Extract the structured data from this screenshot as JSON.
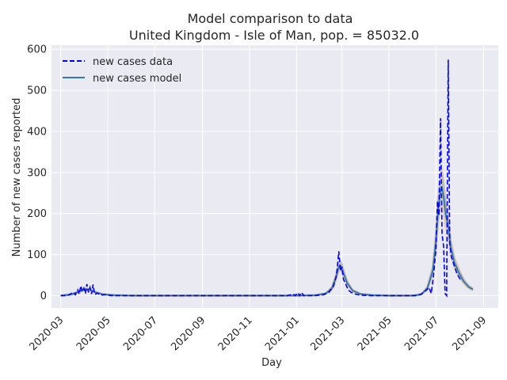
{
  "chart_data": {
    "type": "line",
    "title": "Model comparison to data",
    "subtitle": "United Kingdom - Isle of Man, pop. = 85032.0",
    "xlabel": "Day",
    "ylabel": "Number of new cases reported",
    "x_range": [
      "2020-02-18",
      "2021-09-20"
    ],
    "ylim": [
      -30,
      610
    ],
    "yticks": [
      0,
      100,
      200,
      300,
      400,
      500,
      600
    ],
    "xticks": [
      "2020-03",
      "2020-05",
      "2020-07",
      "2020-09",
      "2020-11",
      "2021-01",
      "2021-03",
      "2021-05",
      "2021-07",
      "2021-09"
    ],
    "grid": true,
    "legend_position": "upper-left",
    "series": [
      {
        "name": "new cases data",
        "style": "dashed",
        "color": "#0000ff",
        "points": [
          [
            "2020-03-01",
            0
          ],
          [
            "2020-03-10",
            0
          ],
          [
            "2020-03-17",
            8
          ],
          [
            "2020-03-20",
            2
          ],
          [
            "2020-03-23",
            14
          ],
          [
            "2020-03-25",
            4
          ],
          [
            "2020-03-27",
            24
          ],
          [
            "2020-03-29",
            10
          ],
          [
            "2020-03-31",
            18
          ],
          [
            "2020-04-02",
            5
          ],
          [
            "2020-04-04",
            28
          ],
          [
            "2020-04-06",
            8
          ],
          [
            "2020-04-08",
            20
          ],
          [
            "2020-04-10",
            4
          ],
          [
            "2020-04-12",
            27
          ],
          [
            "2020-04-14",
            3
          ],
          [
            "2020-04-18",
            6
          ],
          [
            "2020-04-22",
            1
          ],
          [
            "2020-04-28",
            3
          ],
          [
            "2020-05-05",
            0
          ],
          [
            "2020-12-20",
            0
          ],
          [
            "2020-12-28",
            4
          ],
          [
            "2020-12-30",
            0
          ],
          [
            "2021-01-03",
            7
          ],
          [
            "2021-01-05",
            0
          ],
          [
            "2021-01-08",
            8
          ],
          [
            "2021-01-10",
            0
          ],
          [
            "2021-01-25",
            0
          ],
          [
            "2021-02-05",
            2
          ],
          [
            "2021-02-12",
            8
          ],
          [
            "2021-02-18",
            22
          ],
          [
            "2021-02-22",
            50
          ],
          [
            "2021-02-25",
            108
          ],
          [
            "2021-02-27",
            60
          ],
          [
            "2021-03-01",
            70
          ],
          [
            "2021-03-03",
            40
          ],
          [
            "2021-03-06",
            28
          ],
          [
            "2021-03-09",
            14
          ],
          [
            "2021-03-13",
            8
          ],
          [
            "2021-03-18",
            4
          ],
          [
            "2021-03-25",
            1
          ],
          [
            "2021-04-05",
            0
          ],
          [
            "2021-06-05",
            0
          ],
          [
            "2021-06-12",
            4
          ],
          [
            "2021-06-18",
            12
          ],
          [
            "2021-06-22",
            20
          ],
          [
            "2021-06-25",
            5
          ],
          [
            "2021-06-28",
            50
          ],
          [
            "2021-07-01",
            110
          ],
          [
            "2021-07-03",
            230
          ],
          [
            "2021-07-05",
            195
          ],
          [
            "2021-07-07",
            432
          ],
          [
            "2021-07-09",
            150
          ],
          [
            "2021-07-11",
            120
          ],
          [
            "2021-07-13",
            5
          ],
          [
            "2021-07-15",
            0
          ],
          [
            "2021-07-17",
            575
          ],
          [
            "2021-07-19",
            130
          ],
          [
            "2021-07-21",
            95
          ],
          [
            "2021-07-24",
            78
          ],
          [
            "2021-07-28",
            55
          ],
          [
            "2021-08-02",
            38
          ]
        ]
      },
      {
        "name": "new cases model",
        "style": "solid",
        "color": "#3474b0",
        "points": [
          [
            "2020-03-01",
            0
          ],
          [
            "2020-03-15",
            3
          ],
          [
            "2020-03-25",
            10
          ],
          [
            "2020-04-02",
            16
          ],
          [
            "2020-04-08",
            14
          ],
          [
            "2020-04-15",
            8
          ],
          [
            "2020-04-25",
            3
          ],
          [
            "2020-05-10",
            1
          ],
          [
            "2020-06-01",
            0
          ],
          [
            "2021-01-01",
            0
          ],
          [
            "2021-01-25",
            1
          ],
          [
            "2021-02-08",
            5
          ],
          [
            "2021-02-16",
            18
          ],
          [
            "2021-02-21",
            42
          ],
          [
            "2021-02-25",
            70
          ],
          [
            "2021-02-28",
            72
          ],
          [
            "2021-03-03",
            55
          ],
          [
            "2021-03-08",
            30
          ],
          [
            "2021-03-15",
            12
          ],
          [
            "2021-03-25",
            4
          ],
          [
            "2021-04-10",
            1
          ],
          [
            "2021-05-01",
            0
          ],
          [
            "2021-06-01",
            0
          ],
          [
            "2021-06-12",
            3
          ],
          [
            "2021-06-20",
            18
          ],
          [
            "2021-06-27",
            60
          ],
          [
            "2021-07-01",
            130
          ],
          [
            "2021-07-04",
            210
          ],
          [
            "2021-07-07",
            255
          ],
          [
            "2021-07-09",
            262
          ],
          [
            "2021-07-11",
            240
          ],
          [
            "2021-07-14",
            195
          ],
          [
            "2021-07-17",
            170
          ],
          [
            "2021-07-20",
            120
          ],
          [
            "2021-07-25",
            80
          ],
          [
            "2021-07-31",
            55
          ],
          [
            "2021-08-06",
            35
          ],
          [
            "2021-08-12",
            22
          ],
          [
            "2021-08-18",
            15
          ]
        ]
      }
    ]
  }
}
